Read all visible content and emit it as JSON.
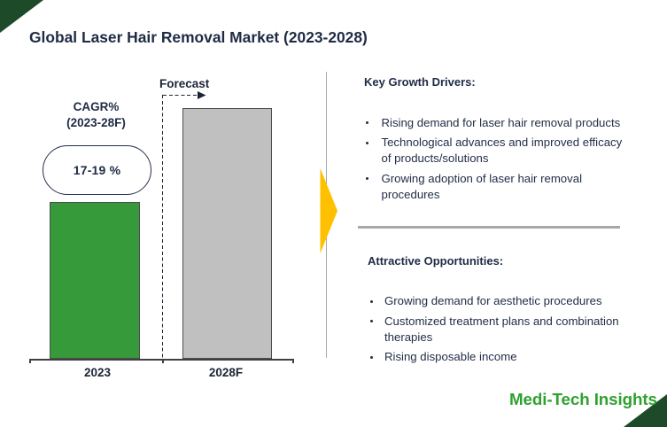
{
  "title": "Global Laser Hair Removal Market (2023-2028)",
  "chart_data": {
    "type": "bar",
    "categories": [
      "2023",
      "2028F"
    ],
    "values": [
      62.4,
      100
    ],
    "value_note": "no numeric axis shown; values are relative bar heights in %",
    "title": "Global Laser Hair Removal Market (2023-2028)",
    "xlabel": "",
    "ylabel": "",
    "ylim": [
      0,
      100
    ],
    "grid": false,
    "legend": false,
    "bar_colors": [
      "#36993a",
      "#c0c0c0"
    ],
    "bar_border_color": "#4d4d4d",
    "annotations": {
      "forecast_label": "Forecast",
      "cagr_label_line1": "CAGR%",
      "cagr_label_line2": "(2023-28F)",
      "cagr_value": "17-19 %"
    }
  },
  "panels": {
    "drivers": {
      "heading": "Key Growth Drivers:",
      "items": [
        "Rising demand for laser hair removal products",
        "Technological advances and improved efficacy of products/solutions",
        "Growing adoption of laser hair removal procedures"
      ]
    },
    "opportunities": {
      "heading": "Attractive Opportunities:",
      "items": [
        "Growing demand for aesthetic procedures",
        "Customized treatment plans and combination therapies",
        "Rising disposable income"
      ]
    }
  },
  "brand": {
    "logo_text": "Medi-Tech Insights",
    "logo_color": "#2fa12f",
    "corner_triangle_color": "#1d4a28"
  },
  "colors": {
    "accent_navy": "#1f2b45",
    "arrow_yellow": "#ffc000",
    "divider_gray": "#a8a8a8",
    "axis_gray": "#404040"
  }
}
